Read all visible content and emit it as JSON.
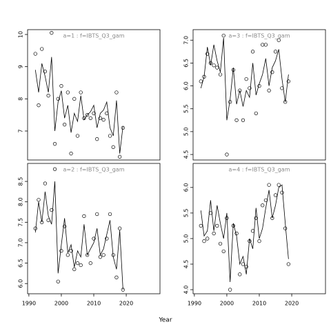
{
  "xlabel": "Year",
  "chart_data": [
    {
      "type": "line",
      "title": "a=1  :  f=IBTS_Q3_gam",
      "x": [
        1992,
        1993,
        1994,
        1995,
        1996,
        1997,
        1998,
        1999,
        2000,
        2001,
        2002,
        2003,
        2004,
        2005,
        2006,
        2007,
        2008,
        2009,
        2010,
        2011,
        2012,
        2013,
        2014,
        2015,
        2016,
        2017,
        2018,
        2019
      ],
      "series": [
        {
          "style": "line",
          "color": "#000000",
          "values": [
            8.9,
            8.2,
            9.1,
            8.7,
            8.2,
            9.3,
            7.0,
            7.9,
            8.25,
            7.4,
            7.8,
            6.95,
            7.55,
            7.3,
            8.1,
            7.35,
            7.5,
            7.6,
            7.8,
            7.1,
            7.55,
            7.65,
            7.9,
            7.1,
            6.85,
            7.95,
            6.3,
            7.15
          ]
        },
        {
          "style": "points",
          "color": "#000000",
          "values": [
            9.4,
            7.8,
            9.55,
            8.85,
            8.1,
            10.05,
            6.6,
            8.0,
            8.4,
            7.2,
            8.2,
            6.3,
            8.0,
            6.85,
            8.2,
            7.4,
            7.5,
            7.4,
            7.55,
            6.75,
            7.4,
            7.35,
            7.55,
            6.85,
            6.5,
            8.2,
            6.2,
            7.1
          ]
        }
      ],
      "xlim": [
        1989.6,
        2030.4
      ],
      "ylim": [
        6.1,
        10.15
      ],
      "yticks": [
        7,
        8,
        9,
        10
      ]
    },
    {
      "type": "line",
      "title": "a=3  :  f=IBTS_Q3_gam",
      "x": [
        1992,
        1993,
        1994,
        1995,
        1996,
        1997,
        1998,
        1999,
        2000,
        2001,
        2002,
        2003,
        2004,
        2005,
        2006,
        2007,
        2008,
        2009,
        2010,
        2011,
        2012,
        2013,
        2014,
        2015,
        2016,
        2017,
        2018,
        2019
      ],
      "series": [
        {
          "style": "line",
          "color": "#000000",
          "values": [
            5.95,
            6.2,
            6.85,
            6.45,
            6.9,
            6.55,
            6.3,
            7.05,
            5.25,
            5.7,
            6.4,
            5.6,
            5.9,
            5.55,
            5.9,
            5.75,
            6.5,
            5.8,
            6.05,
            6.25,
            6.6,
            6.0,
            6.4,
            6.55,
            6.8,
            6.15,
            5.65,
            6.25
          ]
        },
        {
          "style": "points",
          "color": "#000000",
          "values": [
            6.1,
            6.2,
            6.7,
            6.5,
            6.45,
            6.4,
            6.25,
            7.1,
            4.5,
            5.65,
            6.35,
            5.25,
            5.9,
            5.25,
            6.15,
            5.95,
            6.75,
            5.4,
            6.0,
            6.9,
            6.9,
            5.9,
            6.3,
            6.75,
            7.0,
            5.95,
            5.65,
            6.1
          ]
        }
      ],
      "xlim": [
        1989.6,
        2030.4
      ],
      "ylim": [
        4.38,
        7.23
      ],
      "yticks": [
        4.5,
        {
          "value": 5,
          "label": "5.0"
        },
        5.5,
        {
          "value": 6,
          "label": "6.0"
        },
        6.5,
        {
          "value": 7,
          "label": "7.0"
        }
      ]
    },
    {
      "type": "line",
      "title": "a=2  :  f=IBTS_Q3_gam",
      "x": [
        1992,
        1993,
        1994,
        1995,
        1996,
        1997,
        1998,
        1999,
        2000,
        2001,
        2002,
        2003,
        2004,
        2005,
        2006,
        2007,
        2008,
        2009,
        2010,
        2011,
        2012,
        2013,
        2014,
        2015,
        2016,
        2017,
        2018,
        2019
      ],
      "series": [
        {
          "style": "line",
          "color": "#000000",
          "values": [
            7.25,
            8.0,
            7.5,
            8.25,
            7.65,
            7.45,
            8.5,
            6.25,
            6.95,
            7.6,
            6.75,
            6.95,
            6.4,
            6.8,
            6.65,
            7.45,
            6.7,
            6.85,
            7.0,
            7.35,
            6.7,
            6.85,
            7.2,
            7.55,
            6.65,
            6.35,
            7.3,
            5.85
          ]
        },
        {
          "style": "points",
          "color": "#000000",
          "values": [
            7.35,
            8.05,
            7.5,
            8.45,
            7.55,
            7.8,
            8.8,
            6.05,
            6.8,
            7.4,
            6.7,
            6.8,
            6.35,
            6.5,
            6.45,
            7.65,
            6.7,
            6.5,
            7.1,
            7.7,
            6.65,
            6.7,
            7.1,
            7.7,
            6.7,
            6.15,
            7.35,
            5.85
          ]
        }
      ],
      "xlim": [
        1989.6,
        2030.4
      ],
      "ylim": [
        5.75,
        8.94
      ],
      "xticks": [
        1990,
        2000,
        2010,
        2020
      ],
      "yticks": [
        {
          "value": 6,
          "label": "6.0"
        },
        6.5,
        {
          "value": 7,
          "label": "7.0"
        },
        7.5,
        {
          "value": 8,
          "label": "8.0"
        },
        8.5
      ]
    },
    {
      "type": "line",
      "title": "a=4  :  f=IBTS_Q3_gam",
      "x": [
        1992,
        1993,
        1994,
        1995,
        1996,
        1997,
        1998,
        1999,
        2000,
        2001,
        2002,
        2003,
        2004,
        2005,
        2006,
        2007,
        2008,
        2009,
        2010,
        2011,
        2012,
        2013,
        2014,
        2015,
        2016,
        2017,
        2018,
        2019
      ],
      "series": [
        {
          "style": "line",
          "color": "#000000",
          "values": [
            5.55,
            5.05,
            5.15,
            5.75,
            5.15,
            5.65,
            5.3,
            5.0,
            5.5,
            4.15,
            5.3,
            5.05,
            4.5,
            4.65,
            4.3,
            5.0,
            4.8,
            5.6,
            5.0,
            5.2,
            5.6,
            5.95,
            5.4,
            5.65,
            6.0,
            6.05,
            5.3,
            4.6
          ]
        },
        {
          "style": "points",
          "color": "#000000",
          "values": [
            5.25,
            4.95,
            5.0,
            5.5,
            5.1,
            5.25,
            4.9,
            4.75,
            5.4,
            4.0,
            5.25,
            5.1,
            4.3,
            4.5,
            4.45,
            4.95,
            5.15,
            5.4,
            4.95,
            5.65,
            5.75,
            6.05,
            5.4,
            5.85,
            6.05,
            5.9,
            5.2,
            4.5
          ]
        }
      ],
      "xlim": [
        1989.6,
        2030.4
      ],
      "ylim": [
        3.92,
        6.47
      ],
      "xticks": [
        1990,
        2000,
        2010,
        2020
      ],
      "yticks": [
        {
          "value": 4,
          "label": "4.0"
        },
        4.5,
        {
          "value": 5,
          "label": "5.0"
        },
        5.5,
        {
          "value": 6,
          "label": "6.0"
        }
      ]
    }
  ]
}
